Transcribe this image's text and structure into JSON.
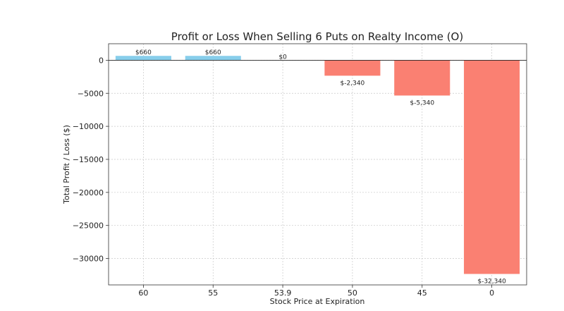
{
  "chart_data": {
    "type": "bar",
    "title": "Profit or Loss When Selling 6 Puts on Realty Income (O)",
    "xlabel": "Stock Price at Expiration",
    "ylabel": "Total Profit / Loss ($)",
    "categories": [
      "60",
      "55",
      "53.9",
      "50",
      "45",
      "0"
    ],
    "values": [
      660,
      660,
      0,
      -2340,
      -5340,
      -32340
    ],
    "data_labels": [
      "$660",
      "$660",
      "$0",
      "$-2,340",
      "$-5,340",
      "$-32,340"
    ],
    "ylim": [
      -34000,
      2500
    ],
    "yticks": [
      0,
      -5000,
      -10000,
      -15000,
      -20000,
      -25000,
      -30000
    ],
    "ytick_labels": [
      "0",
      "−5000",
      "−10000",
      "−15000",
      "−20000",
      "−25000",
      "−30000"
    ],
    "grid": true,
    "colors": {
      "profit": "#87ceeb",
      "loss": "#fa8072"
    }
  }
}
